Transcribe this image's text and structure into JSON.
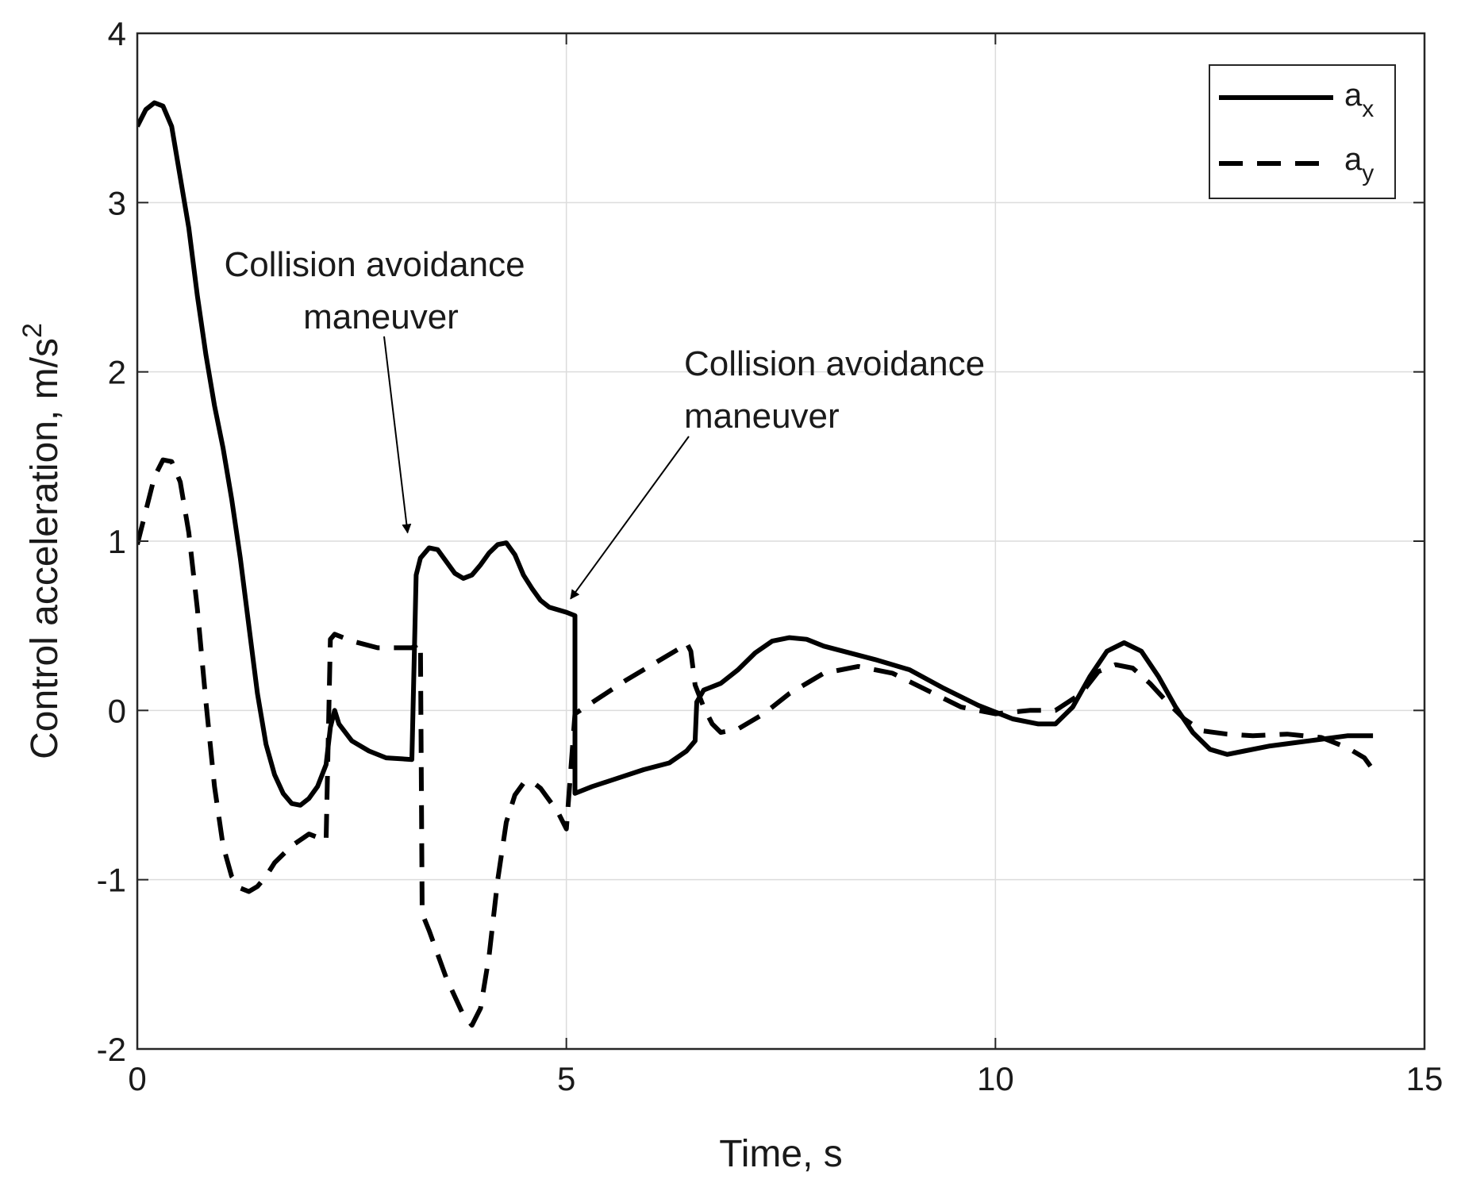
{
  "chart_data": {
    "type": "line",
    "xlabel": "Time, s",
    "ylabel": "Control acceleration, m/s",
    "ylabel_sup": "2",
    "xlim": [
      0,
      15
    ],
    "ylim": [
      -2,
      4
    ],
    "xticks": [
      0,
      5,
      10,
      15
    ],
    "xtick_labels": [
      "0",
      "5",
      "10",
      "15"
    ],
    "yticks": [
      -2,
      -1,
      0,
      1,
      2,
      3,
      4
    ],
    "ytick_labels": [
      "-2",
      "-1",
      "0",
      "1",
      "2",
      "3",
      "4"
    ],
    "grid": true,
    "legend": {
      "placement": "top-right",
      "entries": [
        {
          "base": "a",
          "sub": "x",
          "style": "solid"
        },
        {
          "base": "a",
          "sub": "y",
          "style": "dashed"
        }
      ]
    },
    "series": [
      {
        "style": "solid",
        "color": "#000000",
        "points": [
          [
            0.0,
            3.45
          ],
          [
            0.1,
            3.55
          ],
          [
            0.2,
            3.59
          ],
          [
            0.3,
            3.57
          ],
          [
            0.4,
            3.45
          ],
          [
            0.5,
            3.15
          ],
          [
            0.6,
            2.85
          ],
          [
            0.7,
            2.45
          ],
          [
            0.8,
            2.1
          ],
          [
            0.9,
            1.8
          ],
          [
            1.0,
            1.55
          ],
          [
            1.1,
            1.25
          ],
          [
            1.2,
            0.9
          ],
          [
            1.3,
            0.5
          ],
          [
            1.4,
            0.1
          ],
          [
            1.5,
            -0.2
          ],
          [
            1.6,
            -0.38
          ],
          [
            1.7,
            -0.49
          ],
          [
            1.8,
            -0.55
          ],
          [
            1.9,
            -0.56
          ],
          [
            2.0,
            -0.52
          ],
          [
            2.1,
            -0.45
          ],
          [
            2.2,
            -0.32
          ],
          [
            2.25,
            -0.1
          ],
          [
            2.3,
            0.0
          ],
          [
            2.35,
            -0.08
          ],
          [
            2.5,
            -0.18
          ],
          [
            2.7,
            -0.24
          ],
          [
            2.9,
            -0.28
          ],
          [
            3.2,
            -0.29
          ],
          [
            3.25,
            0.8
          ],
          [
            3.3,
            0.9
          ],
          [
            3.4,
            0.96
          ],
          [
            3.5,
            0.95
          ],
          [
            3.6,
            0.88
          ],
          [
            3.7,
            0.81
          ],
          [
            3.8,
            0.78
          ],
          [
            3.9,
            0.8
          ],
          [
            4.0,
            0.86
          ],
          [
            4.1,
            0.93
          ],
          [
            4.2,
            0.98
          ],
          [
            4.3,
            0.99
          ],
          [
            4.4,
            0.92
          ],
          [
            4.5,
            0.8
          ],
          [
            4.6,
            0.72
          ],
          [
            4.7,
            0.65
          ],
          [
            4.8,
            0.61
          ],
          [
            5.0,
            0.58
          ],
          [
            5.1,
            0.56
          ],
          [
            5.1,
            -0.49
          ],
          [
            5.3,
            -0.45
          ],
          [
            5.6,
            -0.4
          ],
          [
            5.9,
            -0.35
          ],
          [
            6.2,
            -0.31
          ],
          [
            6.4,
            -0.24
          ],
          [
            6.5,
            -0.18
          ],
          [
            6.52,
            0.05
          ],
          [
            6.6,
            0.12
          ],
          [
            6.8,
            0.16
          ],
          [
            7.0,
            0.24
          ],
          [
            7.2,
            0.34
          ],
          [
            7.4,
            0.41
          ],
          [
            7.6,
            0.43
          ],
          [
            7.8,
            0.42
          ],
          [
            8.0,
            0.38
          ],
          [
            8.3,
            0.34
          ],
          [
            8.6,
            0.3
          ],
          [
            9.0,
            0.24
          ],
          [
            9.4,
            0.13
          ],
          [
            9.8,
            0.03
          ],
          [
            10.2,
            -0.05
          ],
          [
            10.5,
            -0.08
          ],
          [
            10.7,
            -0.08
          ],
          [
            10.9,
            0.02
          ],
          [
            11.1,
            0.2
          ],
          [
            11.3,
            0.35
          ],
          [
            11.5,
            0.4
          ],
          [
            11.7,
            0.35
          ],
          [
            11.9,
            0.2
          ],
          [
            12.1,
            0.02
          ],
          [
            12.3,
            -0.13
          ],
          [
            12.5,
            -0.23
          ],
          [
            12.7,
            -0.26
          ],
          [
            12.9,
            -0.24
          ],
          [
            13.2,
            -0.21
          ],
          [
            13.5,
            -0.19
          ],
          [
            13.8,
            -0.17
          ],
          [
            14.1,
            -0.15
          ],
          [
            14.4,
            -0.15
          ],
          [
            14.4,
            -0.15
          ]
        ]
      },
      {
        "style": "dashed",
        "color": "#000000",
        "points": [
          [
            0.0,
            0.98
          ],
          [
            0.1,
            1.18
          ],
          [
            0.2,
            1.38
          ],
          [
            0.3,
            1.48
          ],
          [
            0.4,
            1.47
          ],
          [
            0.5,
            1.35
          ],
          [
            0.6,
            1.05
          ],
          [
            0.7,
            0.6
          ],
          [
            0.8,
            0.05
          ],
          [
            0.9,
            -0.45
          ],
          [
            1.0,
            -0.8
          ],
          [
            1.1,
            -0.98
          ],
          [
            1.2,
            -1.05
          ],
          [
            1.3,
            -1.07
          ],
          [
            1.4,
            -1.04
          ],
          [
            1.5,
            -0.98
          ],
          [
            1.6,
            -0.9
          ],
          [
            1.8,
            -0.8
          ],
          [
            2.0,
            -0.73
          ],
          [
            2.1,
            -0.75
          ],
          [
            2.2,
            -0.77
          ],
          [
            2.25,
            0.42
          ],
          [
            2.3,
            0.45
          ],
          [
            2.5,
            0.41
          ],
          [
            2.8,
            0.37
          ],
          [
            3.2,
            0.37
          ],
          [
            3.3,
            0.4
          ],
          [
            3.32,
            -1.2
          ],
          [
            3.4,
            -1.3
          ],
          [
            3.6,
            -1.58
          ],
          [
            3.8,
            -1.8
          ],
          [
            3.9,
            -1.86
          ],
          [
            4.0,
            -1.76
          ],
          [
            4.1,
            -1.45
          ],
          [
            4.2,
            -1.0
          ],
          [
            4.3,
            -0.66
          ],
          [
            4.4,
            -0.5
          ],
          [
            4.5,
            -0.43
          ],
          [
            4.6,
            -0.42
          ],
          [
            4.7,
            -0.46
          ],
          [
            4.9,
            -0.6
          ],
          [
            5.0,
            -0.7
          ],
          [
            5.1,
            -0.02
          ],
          [
            5.4,
            0.08
          ],
          [
            5.7,
            0.18
          ],
          [
            6.0,
            0.27
          ],
          [
            6.3,
            0.36
          ],
          [
            6.4,
            0.4
          ],
          [
            6.45,
            0.35
          ],
          [
            6.5,
            0.15
          ],
          [
            6.6,
            0.02
          ],
          [
            6.7,
            -0.08
          ],
          [
            6.8,
            -0.13
          ],
          [
            7.0,
            -0.11
          ],
          [
            7.3,
            -0.02
          ],
          [
            7.6,
            0.1
          ],
          [
            8.0,
            0.22
          ],
          [
            8.4,
            0.26
          ],
          [
            8.8,
            0.22
          ],
          [
            9.2,
            0.12
          ],
          [
            9.6,
            0.02
          ],
          [
            10.0,
            -0.02
          ],
          [
            10.4,
            0.0
          ],
          [
            10.7,
            0.0
          ],
          [
            11.0,
            0.1
          ],
          [
            11.2,
            0.23
          ],
          [
            11.4,
            0.27
          ],
          [
            11.6,
            0.25
          ],
          [
            11.8,
            0.16
          ],
          [
            12.0,
            0.05
          ],
          [
            12.2,
            -0.05
          ],
          [
            12.4,
            -0.12
          ],
          [
            12.7,
            -0.14
          ],
          [
            13.0,
            -0.15
          ],
          [
            13.4,
            -0.14
          ],
          [
            13.8,
            -0.16
          ],
          [
            14.1,
            -0.22
          ],
          [
            14.3,
            -0.28
          ],
          [
            14.4,
            -0.35
          ]
        ]
      }
    ],
    "annotations": [
      {
        "lines": [
          "Collision avoidance",
          "maneuver"
        ],
        "target": [
          3.15,
          1.05
        ]
      },
      {
        "lines": [
          "Collision avoidance",
          "maneuver"
        ],
        "target": [
          5.05,
          0.66
        ]
      }
    ]
  }
}
